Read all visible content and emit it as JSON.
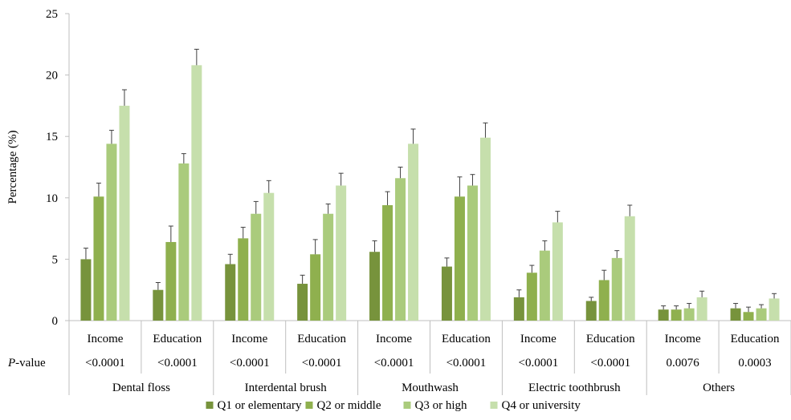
{
  "chart_data": {
    "type": "bar",
    "ylabel": "Percentage (%)",
    "ylim": [
      0,
      25
    ],
    "yticks": [
      0,
      5,
      10,
      15,
      20,
      25
    ],
    "grid": false,
    "legend_position": "bottom",
    "pvalue_header": {
      "italic": "P",
      "rest": "-value"
    },
    "groups": [
      {
        "name": "Dental floss",
        "categories": [
          "Income",
          "Education"
        ]
      },
      {
        "name": "Interdental brush",
        "categories": [
          "Income",
          "Education"
        ]
      },
      {
        "name": "Mouthwash",
        "categories": [
          "Income",
          "Education"
        ]
      },
      {
        "name": "Electric toothbrush",
        "categories": [
          "Income",
          "Education"
        ]
      },
      {
        "name": "Others",
        "categories": [
          "Income",
          "Education"
        ]
      }
    ],
    "categories": [
      "Income",
      "Education",
      "Income",
      "Education",
      "Income",
      "Education",
      "Income",
      "Education",
      "Income",
      "Education"
    ],
    "p_values": [
      "<0.0001",
      "<0.0001",
      "<0.0001",
      "<0.0001",
      "<0.0001",
      "<0.0001",
      "<0.0001",
      "<0.0001",
      "0.0076",
      "0.0003"
    ],
    "series": [
      {
        "name": "Q1 or elementary",
        "color": "#77933c",
        "values": [
          5.0,
          2.5,
          4.6,
          3.0,
          5.6,
          4.4,
          1.9,
          1.6,
          0.9,
          1.0
        ],
        "errors": [
          0.9,
          0.6,
          0.8,
          0.7,
          0.9,
          0.7,
          0.6,
          0.3,
          0.3,
          0.4
        ]
      },
      {
        "name": "Q2 or middle",
        "color": "#8fb04e",
        "values": [
          10.1,
          6.4,
          6.7,
          5.4,
          9.4,
          10.1,
          3.9,
          3.3,
          0.9,
          0.7
        ],
        "errors": [
          1.1,
          1.3,
          0.9,
          1.2,
          1.1,
          1.6,
          0.6,
          0.8,
          0.3,
          0.4
        ]
      },
      {
        "name": "Q3 or high",
        "color": "#aacb7c",
        "values": [
          14.4,
          12.8,
          8.7,
          8.7,
          11.6,
          11.0,
          5.7,
          5.1,
          1.0,
          1.0
        ],
        "errors": [
          1.1,
          0.8,
          1.0,
          0.8,
          0.9,
          0.9,
          0.8,
          0.6,
          0.4,
          0.3
        ]
      },
      {
        "name": "Q4 or university",
        "color": "#c6dfac",
        "values": [
          17.5,
          20.8,
          10.4,
          11.0,
          14.4,
          14.9,
          8.0,
          8.5,
          1.9,
          1.8
        ],
        "errors": [
          1.3,
          1.3,
          1.0,
          1.0,
          1.2,
          1.2,
          0.9,
          0.9,
          0.5,
          0.4
        ]
      }
    ]
  }
}
